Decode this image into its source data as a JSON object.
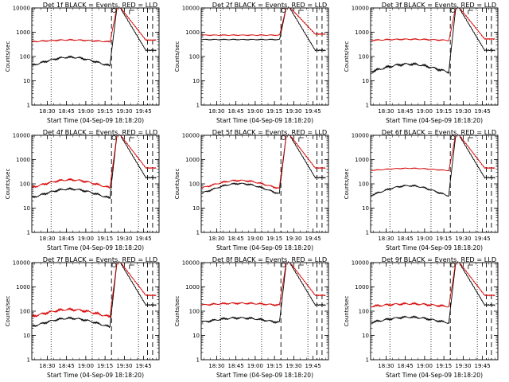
{
  "chart_data": [
    {
      "type": "line",
      "title": "Det 1f BLACK = Events, RED = LLD",
      "xlabel": "Start Time (04-Sep-09 18:18:20)",
      "ylabel": "Counts/sec",
      "xtick_labels": [
        "18:30",
        "18:45",
        "19:00",
        "19:15",
        "19:30",
        "19:45"
      ],
      "ytick_labels": [
        "1",
        "10",
        "100",
        "1000",
        "10000"
      ],
      "yscale": "log",
      "ylim": [
        1,
        10000
      ],
      "xlim": [
        "18:18",
        "19:57"
      ],
      "series": [
        {
          "name": "BLACK = Events",
          "color": "#000000",
          "base": 55,
          "amp": 0.38,
          "wiggle": 0.05
        },
        {
          "name": "RED = LLD",
          "color": "#d40000",
          "base": 430,
          "amp": 0.08,
          "wiggle": 0.03
        }
      ],
      "dotted_x": [
        "18:33",
        "19:05",
        "19:41"
      ],
      "dashed_x": [
        "19:20",
        "19:48",
        "19:52"
      ]
    },
    {
      "type": "line",
      "title": "Det 2f BLACK = Events, RED = LLD",
      "xlabel": "Start Time (04-Sep-09 18:18:20)",
      "ylabel": "Counts/sec",
      "xtick_labels": [
        "18:30",
        "18:45",
        "19:00",
        "19:15",
        "19:30",
        "19:45"
      ],
      "ytick_labels": [
        "1",
        "10",
        "100",
        "1000",
        "10000"
      ],
      "yscale": "log",
      "ylim": [
        1,
        10000
      ],
      "xlim": [
        "18:18",
        "19:57"
      ],
      "series": [
        {
          "name": "BLACK = Events",
          "color": "#000000",
          "base": 500,
          "amp": 0.0,
          "wiggle": 0.02
        },
        {
          "name": "RED = LLD",
          "color": "#d40000",
          "base": 760,
          "amp": 0.0,
          "wiggle": 0.02
        }
      ],
      "dotted_x": [
        "18:33",
        "19:05",
        "19:41"
      ],
      "dashed_x": [
        "19:20",
        "19:48",
        "19:52"
      ]
    },
    {
      "type": "line",
      "title": "Det 3f BLACK = Events, RED = LLD",
      "xlabel": "Start Time (04-Sep-09 18:18:20)",
      "ylabel": "Counts/sec",
      "xtick_labels": [
        "18:30",
        "18:45",
        "19:00",
        "19:15",
        "19:30",
        "19:45"
      ],
      "ytick_labels": [
        "1",
        "10",
        "100",
        "1000",
        "10000"
      ],
      "yscale": "log",
      "ylim": [
        1,
        10000
      ],
      "xlim": [
        "18:18",
        "19:57"
      ],
      "series": [
        {
          "name": "BLACK = Events",
          "color": "#000000",
          "base": 30,
          "amp": 0.35,
          "wiggle": 0.06
        },
        {
          "name": "RED = LLD",
          "color": "#d40000",
          "base": 480,
          "amp": 0.05,
          "wiggle": 0.03
        }
      ],
      "dotted_x": [
        "18:33",
        "19:05",
        "19:41"
      ],
      "dashed_x": [
        "19:20",
        "19:48",
        "19:52"
      ]
    },
    {
      "type": "line",
      "title": "Det 4f BLACK = Events, RED = LLD",
      "xlabel": "Start Time (04-Sep-09 18:18:20)",
      "ylabel": "Counts/sec",
      "xtick_labels": [
        "18:30",
        "18:45",
        "19:00",
        "19:15",
        "19:30",
        "19:45"
      ],
      "ytick_labels": [
        "1",
        "10",
        "100",
        "1000",
        "10000"
      ],
      "yscale": "log",
      "ylim": [
        1,
        10000
      ],
      "xlim": [
        "18:18",
        "19:57"
      ],
      "series": [
        {
          "name": "BLACK = Events",
          "color": "#000000",
          "base": 35,
          "amp": 0.4,
          "wiggle": 0.05
        },
        {
          "name": "RED = LLD",
          "color": "#d40000",
          "base": 90,
          "amp": 0.35,
          "wiggle": 0.05
        }
      ],
      "dotted_x": [
        "18:33",
        "19:05",
        "19:41"
      ],
      "dashed_x": [
        "19:20",
        "19:48",
        "19:52"
      ]
    },
    {
      "type": "line",
      "title": "Det 5f BLACK = Events, RED = LLD",
      "xlabel": "Start Time (04-Sep-09 18:18:20)",
      "ylabel": "Counts/sec",
      "xtick_labels": [
        "18:30",
        "18:45",
        "19:00",
        "19:15",
        "19:30",
        "19:45"
      ],
      "ytick_labels": [
        "1",
        "10",
        "100",
        "1000",
        "10000"
      ],
      "yscale": "log",
      "ylim": [
        1,
        10000
      ],
      "xlim": [
        "18:18",
        "19:57"
      ],
      "series": [
        {
          "name": "BLACK = Events",
          "color": "#000000",
          "base": 55,
          "amp": 0.45,
          "wiggle": 0.04
        },
        {
          "name": "RED = LLD",
          "color": "#d40000",
          "base": 85,
          "amp": 0.35,
          "wiggle": 0.04
        }
      ],
      "dotted_x": [
        "18:33",
        "19:05",
        "19:41"
      ],
      "dashed_x": [
        "19:20",
        "19:48",
        "19:52"
      ]
    },
    {
      "type": "line",
      "title": "Det 6f BLACK = Events, RED = LLD",
      "xlabel": "Start Time (04-Sep-09 18:18:20)",
      "ylabel": "Counts/sec",
      "xtick_labels": [
        "18:30",
        "18:45",
        "19:00",
        "19:15",
        "19:30",
        "19:45"
      ],
      "ytick_labels": [
        "1",
        "10",
        "100",
        "1000",
        "10000"
      ],
      "yscale": "log",
      "ylim": [
        1,
        10000
      ],
      "xlim": [
        "18:18",
        "19:57"
      ],
      "series": [
        {
          "name": "BLACK = Events",
          "color": "#000000",
          "base": 45,
          "amp": 0.45,
          "wiggle": 0.04
        },
        {
          "name": "RED = LLD",
          "color": "#d40000",
          "base": 380,
          "amp": 0.1,
          "wiggle": 0.02
        }
      ],
      "dotted_x": [
        "18:33",
        "19:05",
        "19:41"
      ],
      "dashed_x": [
        "19:20",
        "19:48",
        "19:52"
      ]
    },
    {
      "type": "line",
      "title": "Det 7f BLACK = Events, RED = LLD",
      "xlabel": "Start Time (04-Sep-09 18:18:20)",
      "ylabel": "Counts/sec",
      "xtick_labels": [
        "18:30",
        "18:45",
        "19:00",
        "19:15",
        "19:30",
        "19:45"
      ],
      "ytick_labels": [
        "1",
        "10",
        "100",
        "1000",
        "10000"
      ],
      "yscale": "log",
      "ylim": [
        1,
        10000
      ],
      "xlim": [
        "18:18",
        "19:57"
      ],
      "series": [
        {
          "name": "BLACK = Events",
          "color": "#000000",
          "base": 30,
          "amp": 0.38,
          "wiggle": 0.05
        },
        {
          "name": "RED = LLD",
          "color": "#d40000",
          "base": 75,
          "amp": 0.32,
          "wiggle": 0.06
        }
      ],
      "dotted_x": [
        "18:33",
        "19:05",
        "19:41"
      ],
      "dashed_x": [
        "19:20",
        "19:48",
        "19:52"
      ]
    },
    {
      "type": "line",
      "title": "Det 8f BLACK = Events, RED = LLD",
      "xlabel": "Start Time (04-Sep-09 18:18:20)",
      "ylabel": "Counts/sec",
      "xtick_labels": [
        "18:30",
        "18:45",
        "19:00",
        "19:15",
        "19:30",
        "19:45"
      ],
      "ytick_labels": [
        "1",
        "10",
        "100",
        "1000",
        "10000"
      ],
      "yscale": "log",
      "ylim": [
        1,
        10000
      ],
      "xlim": [
        "18:18",
        "19:57"
      ],
      "series": [
        {
          "name": "BLACK = Events",
          "color": "#000000",
          "base": 40,
          "amp": 0.2,
          "wiggle": 0.05
        },
        {
          "name": "RED = LLD",
          "color": "#d40000",
          "base": 190,
          "amp": 0.08,
          "wiggle": 0.04
        }
      ],
      "dotted_x": [
        "18:33",
        "19:05",
        "19:41"
      ],
      "dashed_x": [
        "19:20",
        "19:48",
        "19:52"
      ]
    },
    {
      "type": "line",
      "title": "Det 9f BLACK = Events, RED = LLD",
      "xlabel": "Start Time (04-Sep-09 18:18:20)",
      "ylabel": "Counts/sec",
      "xtick_labels": [
        "18:30",
        "18:45",
        "19:00",
        "19:15",
        "19:30",
        "19:45"
      ],
      "ytick_labels": [
        "1",
        "10",
        "100",
        "1000",
        "10000"
      ],
      "yscale": "log",
      "ylim": [
        1,
        10000
      ],
      "xlim": [
        "18:18",
        "19:57"
      ],
      "series": [
        {
          "name": "BLACK = Events",
          "color": "#000000",
          "base": 40,
          "amp": 0.25,
          "wiggle": 0.05
        },
        {
          "name": "RED = LLD",
          "color": "#d40000",
          "base": 170,
          "amp": 0.12,
          "wiggle": 0.05
        }
      ],
      "dotted_x": [
        "18:33",
        "19:05",
        "19:41"
      ],
      "dashed_x": [
        "19:20",
        "19:48",
        "19:52"
      ]
    }
  ]
}
